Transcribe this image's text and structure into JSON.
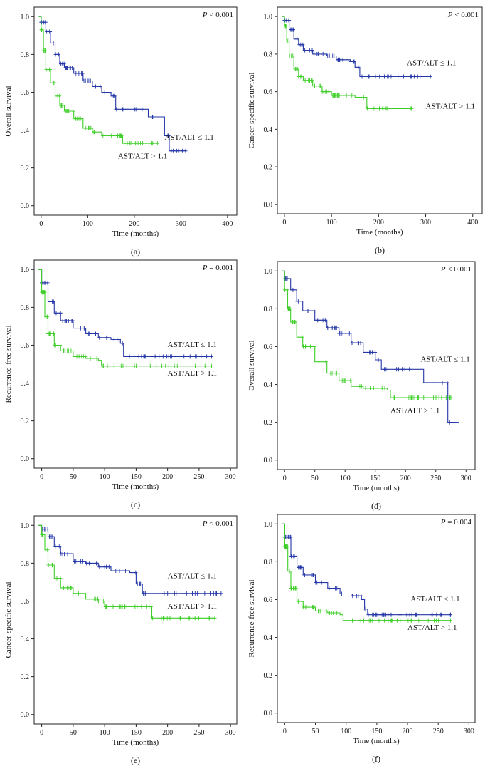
{
  "colors": {
    "low_ratio": "#2437a8",
    "high_ratio": "#3ecf28"
  },
  "chart_data": [
    {
      "type": "line",
      "panel": "(a)",
      "ylabel": "Overall survival",
      "xlabel": "Time (months)",
      "p_value_prefix": "P",
      "p_value_text": " < 0.001",
      "xlim": [
        -15,
        420
      ],
      "ylim": [
        -0.05,
        1.05
      ],
      "xticks": [
        0,
        100,
        200,
        300,
        400
      ],
      "yticks": [
        0.0,
        0.2,
        0.4,
        0.6,
        0.8,
        1.0
      ],
      "xtick_labels": [
        "0",
        "100",
        "200",
        "300",
        "400"
      ],
      "ytick_labels": [
        "0.0",
        "0.2",
        "0.4",
        "0.6",
        "0.8",
        "1.0"
      ],
      "series": [
        {
          "name": "AST/ALT ≤ 1.1",
          "color": "#2437a8",
          "label_at": [
            265,
            0.35
          ],
          "points": [
            [
              -5,
              1.0
            ],
            [
              0,
              0.97
            ],
            [
              10,
              0.92
            ],
            [
              20,
              0.86
            ],
            [
              30,
              0.8
            ],
            [
              40,
              0.75
            ],
            [
              50,
              0.73
            ],
            [
              70,
              0.7
            ],
            [
              90,
              0.66
            ],
            [
              110,
              0.63
            ],
            [
              130,
              0.6
            ],
            [
              150,
              0.58
            ],
            [
              160,
              0.51
            ],
            [
              220,
              0.51
            ],
            [
              230,
              0.47
            ],
            [
              260,
              0.47
            ],
            [
              265,
              0.37
            ],
            [
              275,
              0.29
            ],
            [
              310,
              0.29
            ]
          ]
        },
        {
          "name": "AST/ALT > 1.1",
          "color": "#3ecf28",
          "label_at": [
            165,
            0.25
          ],
          "points": [
            [
              -5,
              1.0
            ],
            [
              0,
              0.93
            ],
            [
              5,
              0.82
            ],
            [
              10,
              0.72
            ],
            [
              20,
              0.65
            ],
            [
              30,
              0.58
            ],
            [
              40,
              0.53
            ],
            [
              50,
              0.5
            ],
            [
              70,
              0.46
            ],
            [
              90,
              0.41
            ],
            [
              110,
              0.39
            ],
            [
              130,
              0.37
            ],
            [
              170,
              0.37
            ],
            [
              175,
              0.33
            ],
            [
              250,
              0.33
            ]
          ]
        }
      ]
    },
    {
      "type": "line",
      "panel": "(b)",
      "ylabel": "Cancer-specific survival",
      "xlabel": "Time (months)",
      "p_value_prefix": "P",
      "p_value_text": " < 0.001",
      "xlim": [
        -15,
        420
      ],
      "ylim": [
        -0.05,
        1.05
      ],
      "xticks": [
        0,
        100,
        200,
        300,
        400
      ],
      "yticks": [
        0.0,
        0.2,
        0.4,
        0.6,
        0.8,
        1.0
      ],
      "xtick_labels": [
        "0",
        "100",
        "200",
        "300",
        "400"
      ],
      "ytick_labels": [
        "0.0",
        "0.2",
        "0.4",
        "0.6",
        "0.8",
        "1.0"
      ],
      "series": [
        {
          "name": "AST/ALT ≤ 1.1",
          "color": "#2437a8",
          "label_at": [
            260,
            0.74
          ],
          "points": [
            [
              -5,
              1.0
            ],
            [
              0,
              0.98
            ],
            [
              10,
              0.93
            ],
            [
              20,
              0.88
            ],
            [
              30,
              0.85
            ],
            [
              40,
              0.82
            ],
            [
              60,
              0.8
            ],
            [
              90,
              0.79
            ],
            [
              110,
              0.77
            ],
            [
              140,
              0.76
            ],
            [
              150,
              0.73
            ],
            [
              160,
              0.68
            ],
            [
              310,
              0.68
            ]
          ]
        },
        {
          "name": "AST/ALT > 1.1",
          "color": "#3ecf28",
          "label_at": [
            300,
            0.51
          ],
          "points": [
            [
              -5,
              1.0
            ],
            [
              0,
              0.95
            ],
            [
              5,
              0.87
            ],
            [
              10,
              0.79
            ],
            [
              20,
              0.72
            ],
            [
              30,
              0.68
            ],
            [
              40,
              0.66
            ],
            [
              60,
              0.63
            ],
            [
              80,
              0.6
            ],
            [
              100,
              0.58
            ],
            [
              150,
              0.57
            ],
            [
              170,
              0.57
            ],
            [
              175,
              0.51
            ],
            [
              270,
              0.51
            ]
          ]
        }
      ]
    },
    {
      "type": "line",
      "panel": "(c)",
      "ylabel": "Recurrence-free survival",
      "xlabel": "Time (months)",
      "p_value_prefix": "P",
      "p_value_text": " = 0.001",
      "xlim": [
        -12,
        310
      ],
      "ylim": [
        -0.05,
        1.05
      ],
      "xticks": [
        0,
        50,
        100,
        150,
        200,
        250,
        300
      ],
      "yticks": [
        0.0,
        0.2,
        0.4,
        0.6,
        0.8,
        1.0
      ],
      "xtick_labels": [
        "0",
        "50",
        "100",
        "150",
        "200",
        "250",
        "300"
      ],
      "ytick_labels": [
        "0.0",
        "0.2",
        "0.4",
        "0.6",
        "0.8",
        "1.0"
      ],
      "series": [
        {
          "name": "AST/ALT ≤ 1.1",
          "color": "#2437a8",
          "label_at": [
            200,
            0.59
          ],
          "points": [
            [
              -5,
              1.0
            ],
            [
              0,
              0.93
            ],
            [
              10,
              0.83
            ],
            [
              20,
              0.77
            ],
            [
              30,
              0.73
            ],
            [
              50,
              0.69
            ],
            [
              70,
              0.66
            ],
            [
              90,
              0.64
            ],
            [
              110,
              0.63
            ],
            [
              125,
              0.61
            ],
            [
              130,
              0.54
            ],
            [
              270,
              0.54
            ]
          ]
        },
        {
          "name": "AST/ALT > 1.1",
          "color": "#3ecf28",
          "label_at": [
            200,
            0.44
          ],
          "points": [
            [
              -5,
              1.0
            ],
            [
              0,
              0.88
            ],
            [
              5,
              0.75
            ],
            [
              10,
              0.66
            ],
            [
              20,
              0.6
            ],
            [
              30,
              0.57
            ],
            [
              50,
              0.54
            ],
            [
              70,
              0.53
            ],
            [
              90,
              0.52
            ],
            [
              95,
              0.49
            ],
            [
              270,
              0.49
            ]
          ]
        }
      ]
    },
    {
      "type": "line",
      "panel": "(d)",
      "ylabel": "Overall survival",
      "xlabel": "Time (months)",
      "p_value_prefix": "P",
      "p_value_text": " < 0.001",
      "xlim": [
        -12,
        315
      ],
      "ylim": [
        -0.05,
        1.05
      ],
      "xticks": [
        0,
        50,
        100,
        150,
        200,
        250,
        300
      ],
      "yticks": [
        0.0,
        0.2,
        0.4,
        0.6,
        0.8,
        1.0
      ],
      "xtick_labels": [
        "0",
        "50",
        "100",
        "150",
        "200",
        "250",
        "300"
      ],
      "ytick_labels": [
        "0.0",
        "0.2",
        "0.4",
        "0.6",
        "0.8",
        "1.0"
      ],
      "series": [
        {
          "name": "AST/ALT ≤ 1.1",
          "color": "#2437a8",
          "label_at": [
            225,
            0.52
          ],
          "points": [
            [
              -5,
              1.0
            ],
            [
              0,
              0.96
            ],
            [
              10,
              0.9
            ],
            [
              20,
              0.84
            ],
            [
              30,
              0.79
            ],
            [
              50,
              0.74
            ],
            [
              70,
              0.7
            ],
            [
              90,
              0.67
            ],
            [
              110,
              0.62
            ],
            [
              130,
              0.57
            ],
            [
              150,
              0.53
            ],
            [
              160,
              0.48
            ],
            [
              225,
              0.48
            ],
            [
              230,
              0.41
            ],
            [
              265,
              0.41
            ],
            [
              270,
              0.2
            ],
            [
              285,
              0.2
            ]
          ]
        },
        {
          "name": "AST/ALT > 1.1",
          "color": "#3ecf28",
          "label_at": [
            175,
            0.25
          ],
          "points": [
            [
              -5,
              1.0
            ],
            [
              0,
              0.9
            ],
            [
              5,
              0.8
            ],
            [
              10,
              0.73
            ],
            [
              20,
              0.65
            ],
            [
              30,
              0.6
            ],
            [
              50,
              0.52
            ],
            [
              70,
              0.46
            ],
            [
              90,
              0.42
            ],
            [
              110,
              0.39
            ],
            [
              130,
              0.38
            ],
            [
              170,
              0.37
            ],
            [
              175,
              0.33
            ],
            [
              275,
              0.33
            ]
          ]
        }
      ]
    },
    {
      "type": "line",
      "panel": "(e)",
      "ylabel": "Cancer-specific survival",
      "xlabel": "Time (months)",
      "p_value_prefix": "P",
      "p_value_text": " < 0.001",
      "xlim": [
        -12,
        310
      ],
      "ylim": [
        -0.05,
        1.05
      ],
      "xticks": [
        0,
        50,
        100,
        150,
        200,
        250,
        300
      ],
      "yticks": [
        0.0,
        0.2,
        0.4,
        0.6,
        0.8,
        1.0
      ],
      "xtick_labels": [
        "0",
        "50",
        "100",
        "150",
        "200",
        "250",
        "300"
      ],
      "ytick_labels": [
        "0.0",
        "0.2",
        "0.4",
        "0.6",
        "0.8",
        "1.0"
      ],
      "series": [
        {
          "name": "AST/ALT ≤ 1.1",
          "color": "#2437a8",
          "label_at": [
            200,
            0.72
          ],
          "points": [
            [
              -5,
              1.0
            ],
            [
              0,
              0.98
            ],
            [
              10,
              0.94
            ],
            [
              20,
              0.89
            ],
            [
              30,
              0.85
            ],
            [
              50,
              0.81
            ],
            [
              70,
              0.8
            ],
            [
              90,
              0.78
            ],
            [
              110,
              0.76
            ],
            [
              140,
              0.75
            ],
            [
              150,
              0.69
            ],
            [
              160,
              0.64
            ],
            [
              285,
              0.64
            ]
          ]
        },
        {
          "name": "AST/ALT > 1.1",
          "color": "#3ecf28",
          "label_at": [
            200,
            0.56
          ],
          "points": [
            [
              -5,
              1.0
            ],
            [
              0,
              0.95
            ],
            [
              5,
              0.87
            ],
            [
              10,
              0.79
            ],
            [
              20,
              0.72
            ],
            [
              30,
              0.67
            ],
            [
              50,
              0.64
            ],
            [
              70,
              0.61
            ],
            [
              90,
              0.6
            ],
            [
              100,
              0.57
            ],
            [
              170,
              0.57
            ],
            [
              175,
              0.51
            ],
            [
              275,
              0.51
            ]
          ]
        }
      ]
    },
    {
      "type": "line",
      "panel": "(f)",
      "ylabel": "Recurrence-free survival",
      "xlabel": "Time (months)",
      "p_value_prefix": "P",
      "p_value_text": " = 0.004",
      "xlim": [
        -12,
        310
      ],
      "ylim": [
        -0.05,
        1.05
      ],
      "xticks": [
        0,
        50,
        100,
        150,
        200,
        250,
        300
      ],
      "yticks": [
        0.0,
        0.2,
        0.4,
        0.6,
        0.8,
        1.0
      ],
      "xtick_labels": [
        "0",
        "50",
        "100",
        "150",
        "200",
        "250",
        "300"
      ],
      "ytick_labels": [
        "0.0",
        "0.2",
        "0.4",
        "0.6",
        "0.8",
        "1.0"
      ],
      "series": [
        {
          "name": "AST/ALT ≤ 1.1",
          "color": "#2437a8",
          "label_at": [
            205,
            0.59
          ],
          "points": [
            [
              -5,
              1.0
            ],
            [
              0,
              0.93
            ],
            [
              10,
              0.83
            ],
            [
              20,
              0.77
            ],
            [
              30,
              0.73
            ],
            [
              50,
              0.69
            ],
            [
              70,
              0.66
            ],
            [
              90,
              0.63
            ],
            [
              110,
              0.62
            ],
            [
              125,
              0.6
            ],
            [
              130,
              0.55
            ],
            [
              135,
              0.52
            ],
            [
              270,
              0.52
            ]
          ]
        },
        {
          "name": "AST/ALT > 1.1",
          "color": "#3ecf28",
          "label_at": [
            200,
            0.44
          ],
          "points": [
            [
              -5,
              1.0
            ],
            [
              0,
              0.88
            ],
            [
              5,
              0.75
            ],
            [
              10,
              0.66
            ],
            [
              20,
              0.59
            ],
            [
              30,
              0.56
            ],
            [
              50,
              0.54
            ],
            [
              70,
              0.53
            ],
            [
              90,
              0.52
            ],
            [
              95,
              0.49
            ],
            [
              270,
              0.49
            ]
          ]
        }
      ]
    }
  ]
}
